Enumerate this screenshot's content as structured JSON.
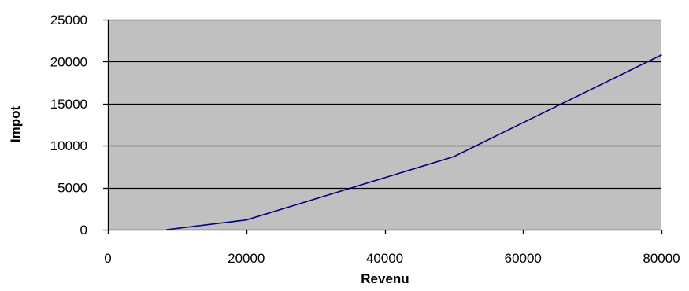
{
  "chart_data": {
    "type": "line",
    "title": "",
    "xlabel": "Revenu",
    "ylabel": "Impot",
    "xlim": [
      0,
      80000
    ],
    "ylim": [
      0,
      25000
    ],
    "x_ticks": [
      0,
      20000,
      40000,
      60000,
      80000
    ],
    "y_ticks": [
      0,
      5000,
      10000,
      15000,
      20000,
      25000
    ],
    "x_tick_labels": [
      "0",
      "20000",
      "40000",
      "60000",
      "80000"
    ],
    "y_tick_labels": [
      "0",
      "5000",
      "10000",
      "15000",
      "20000",
      "25000"
    ],
    "grid": "horizontal",
    "legend": "none",
    "series": [
      {
        "x": [
          8500,
          20000,
          50000,
          80000
        ],
        "y": [
          0,
          1150,
          8700,
          20800
        ]
      }
    ]
  },
  "colors": {
    "plot_background": "#c0c0c0",
    "line": "#000080",
    "gridline": "#000000",
    "axis": "#000000",
    "page_background": "#ffffff"
  }
}
